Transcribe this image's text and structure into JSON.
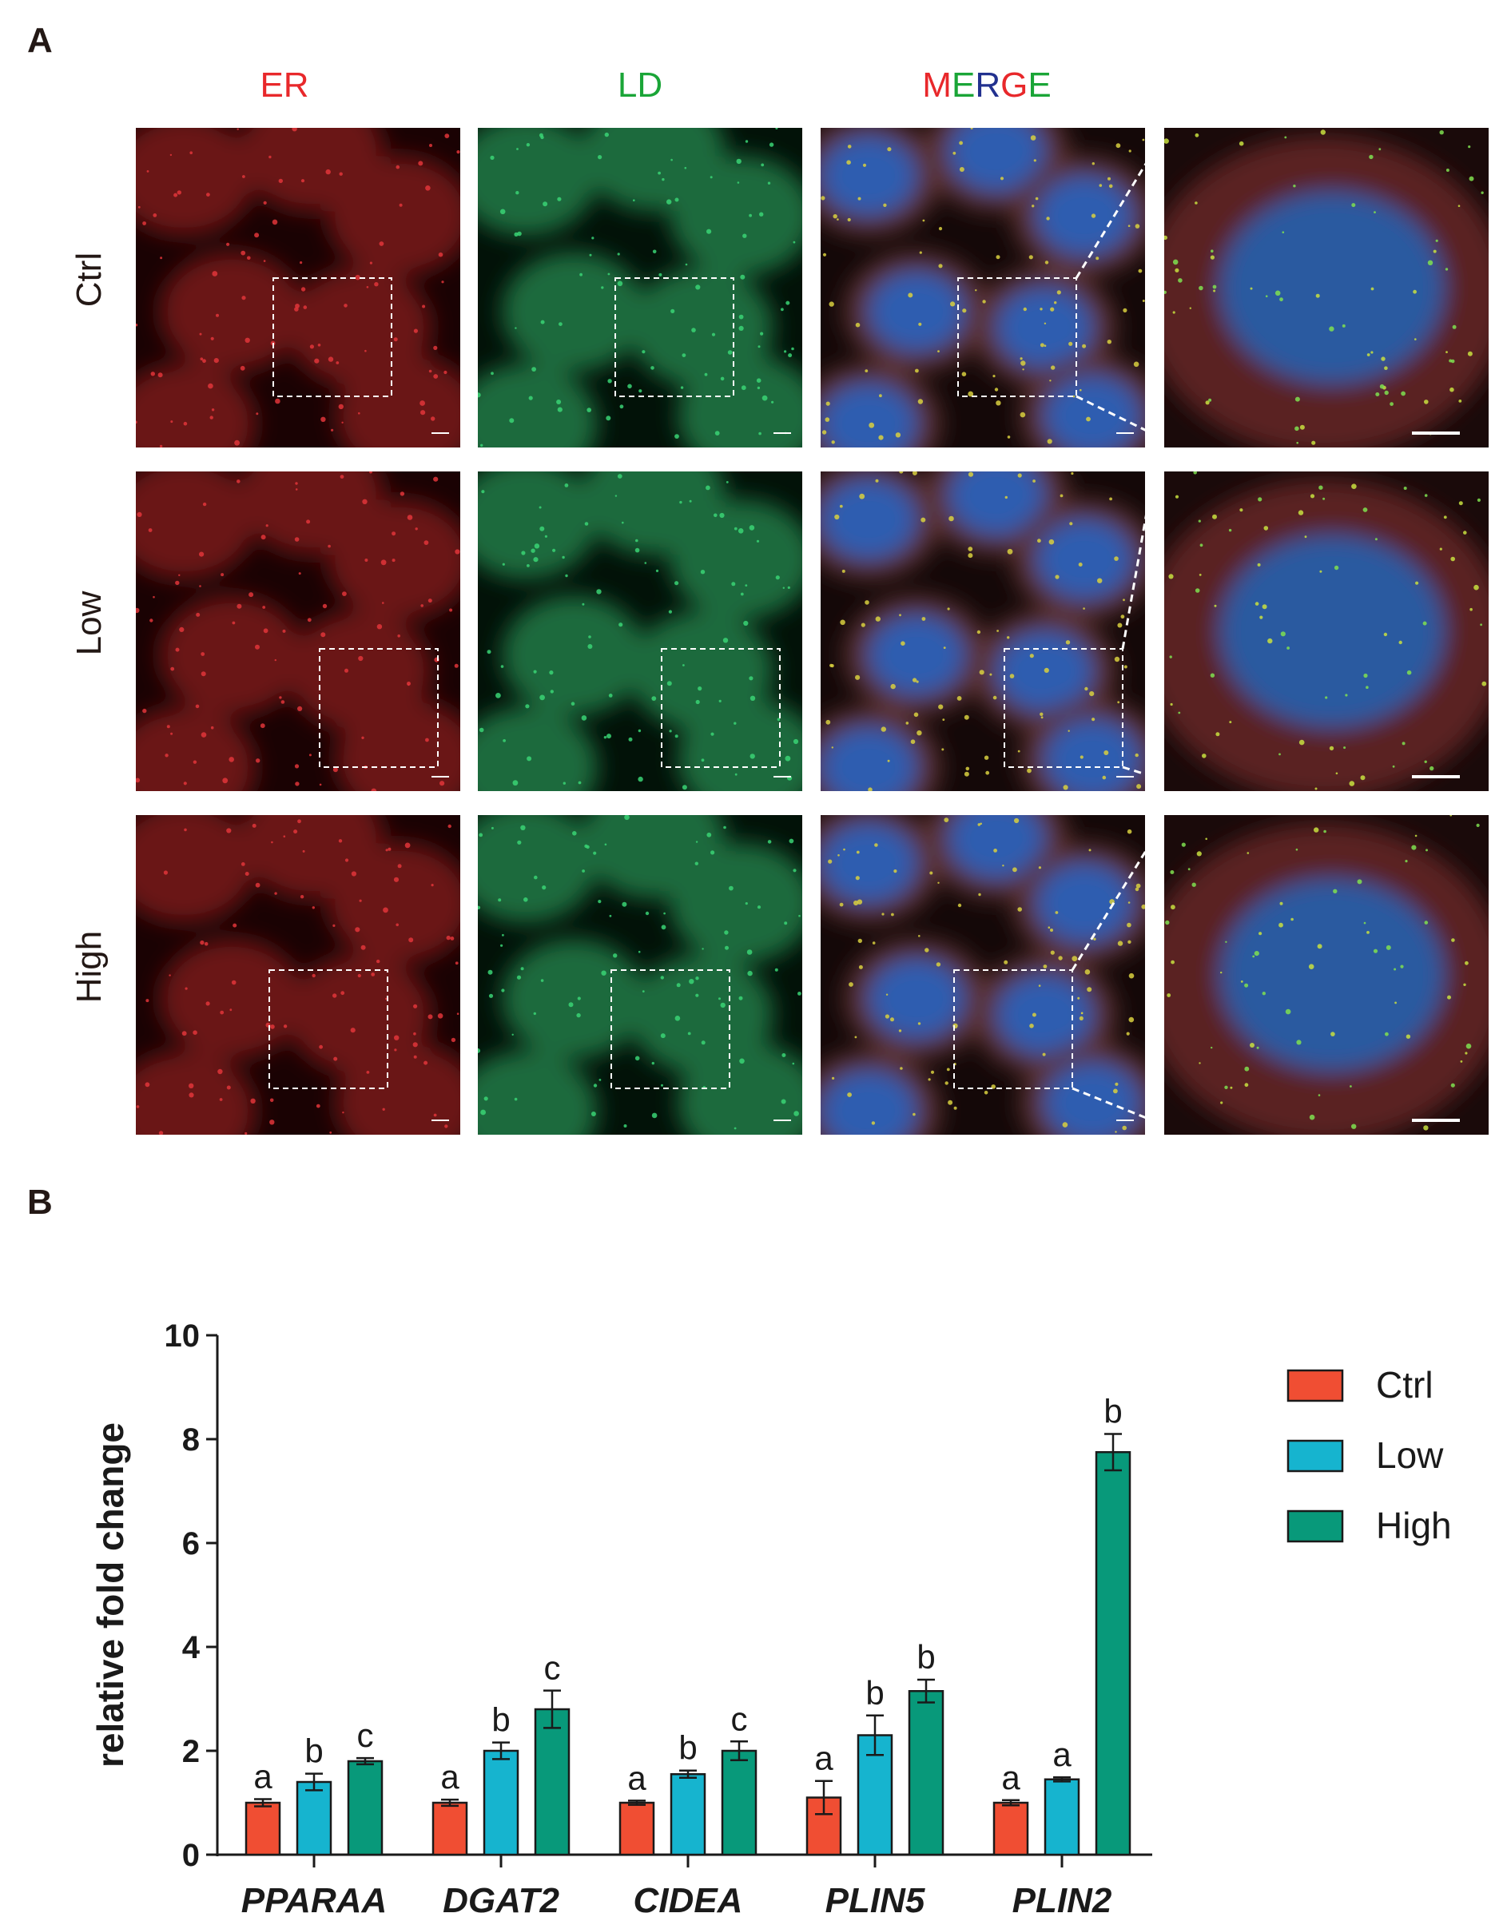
{
  "figure": {
    "panel_a_letter": "A",
    "panel_b_letter": "B",
    "channels": [
      {
        "label": "ER",
        "color": "#e8282b"
      },
      {
        "label": "LD",
        "color": "#1aa537"
      }
    ],
    "merge_letters": [
      {
        "ch": "M",
        "color": "#e8282b"
      },
      {
        "ch": "E",
        "color": "#1aa537"
      },
      {
        "ch": "R",
        "color": "#22318f"
      },
      {
        "ch": "G",
        "color": "#e8282b"
      },
      {
        "ch": "E",
        "color": "#1aa537"
      }
    ],
    "rows": [
      {
        "label": "Ctrl"
      },
      {
        "label": "Low"
      },
      {
        "label": "High"
      }
    ]
  },
  "chart_data": {
    "type": "bar",
    "ylabel": "relative fold change",
    "ylim": [
      0,
      10
    ],
    "yticks": [
      0,
      2,
      4,
      6,
      8,
      10
    ],
    "categories": [
      "PPARAA",
      "DGAT2",
      "CIDEA",
      "PLIN5",
      "PLIN2"
    ],
    "series": [
      {
        "name": "Ctrl",
        "color": "#f04e33",
        "values": [
          1.0,
          1.0,
          1.0,
          1.1,
          1.0
        ],
        "errors": [
          0.07,
          0.06,
          0.04,
          0.32,
          0.05
        ],
        "letters": [
          "a",
          "a",
          "a",
          "a",
          "a"
        ]
      },
      {
        "name": "Low",
        "color": "#16b4cf",
        "values": [
          1.4,
          2.0,
          1.55,
          2.3,
          1.45
        ],
        "errors": [
          0.16,
          0.16,
          0.07,
          0.38,
          0.04
        ],
        "letters": [
          "b",
          "b",
          "b",
          "b",
          "a"
        ]
      },
      {
        "name": "High",
        "color": "#08997a",
        "values": [
          1.8,
          2.8,
          2.0,
          3.15,
          7.75
        ],
        "errors": [
          0.06,
          0.36,
          0.18,
          0.22,
          0.35
        ],
        "letters": [
          "c",
          "c",
          "c",
          "b",
          "b"
        ]
      }
    ]
  }
}
